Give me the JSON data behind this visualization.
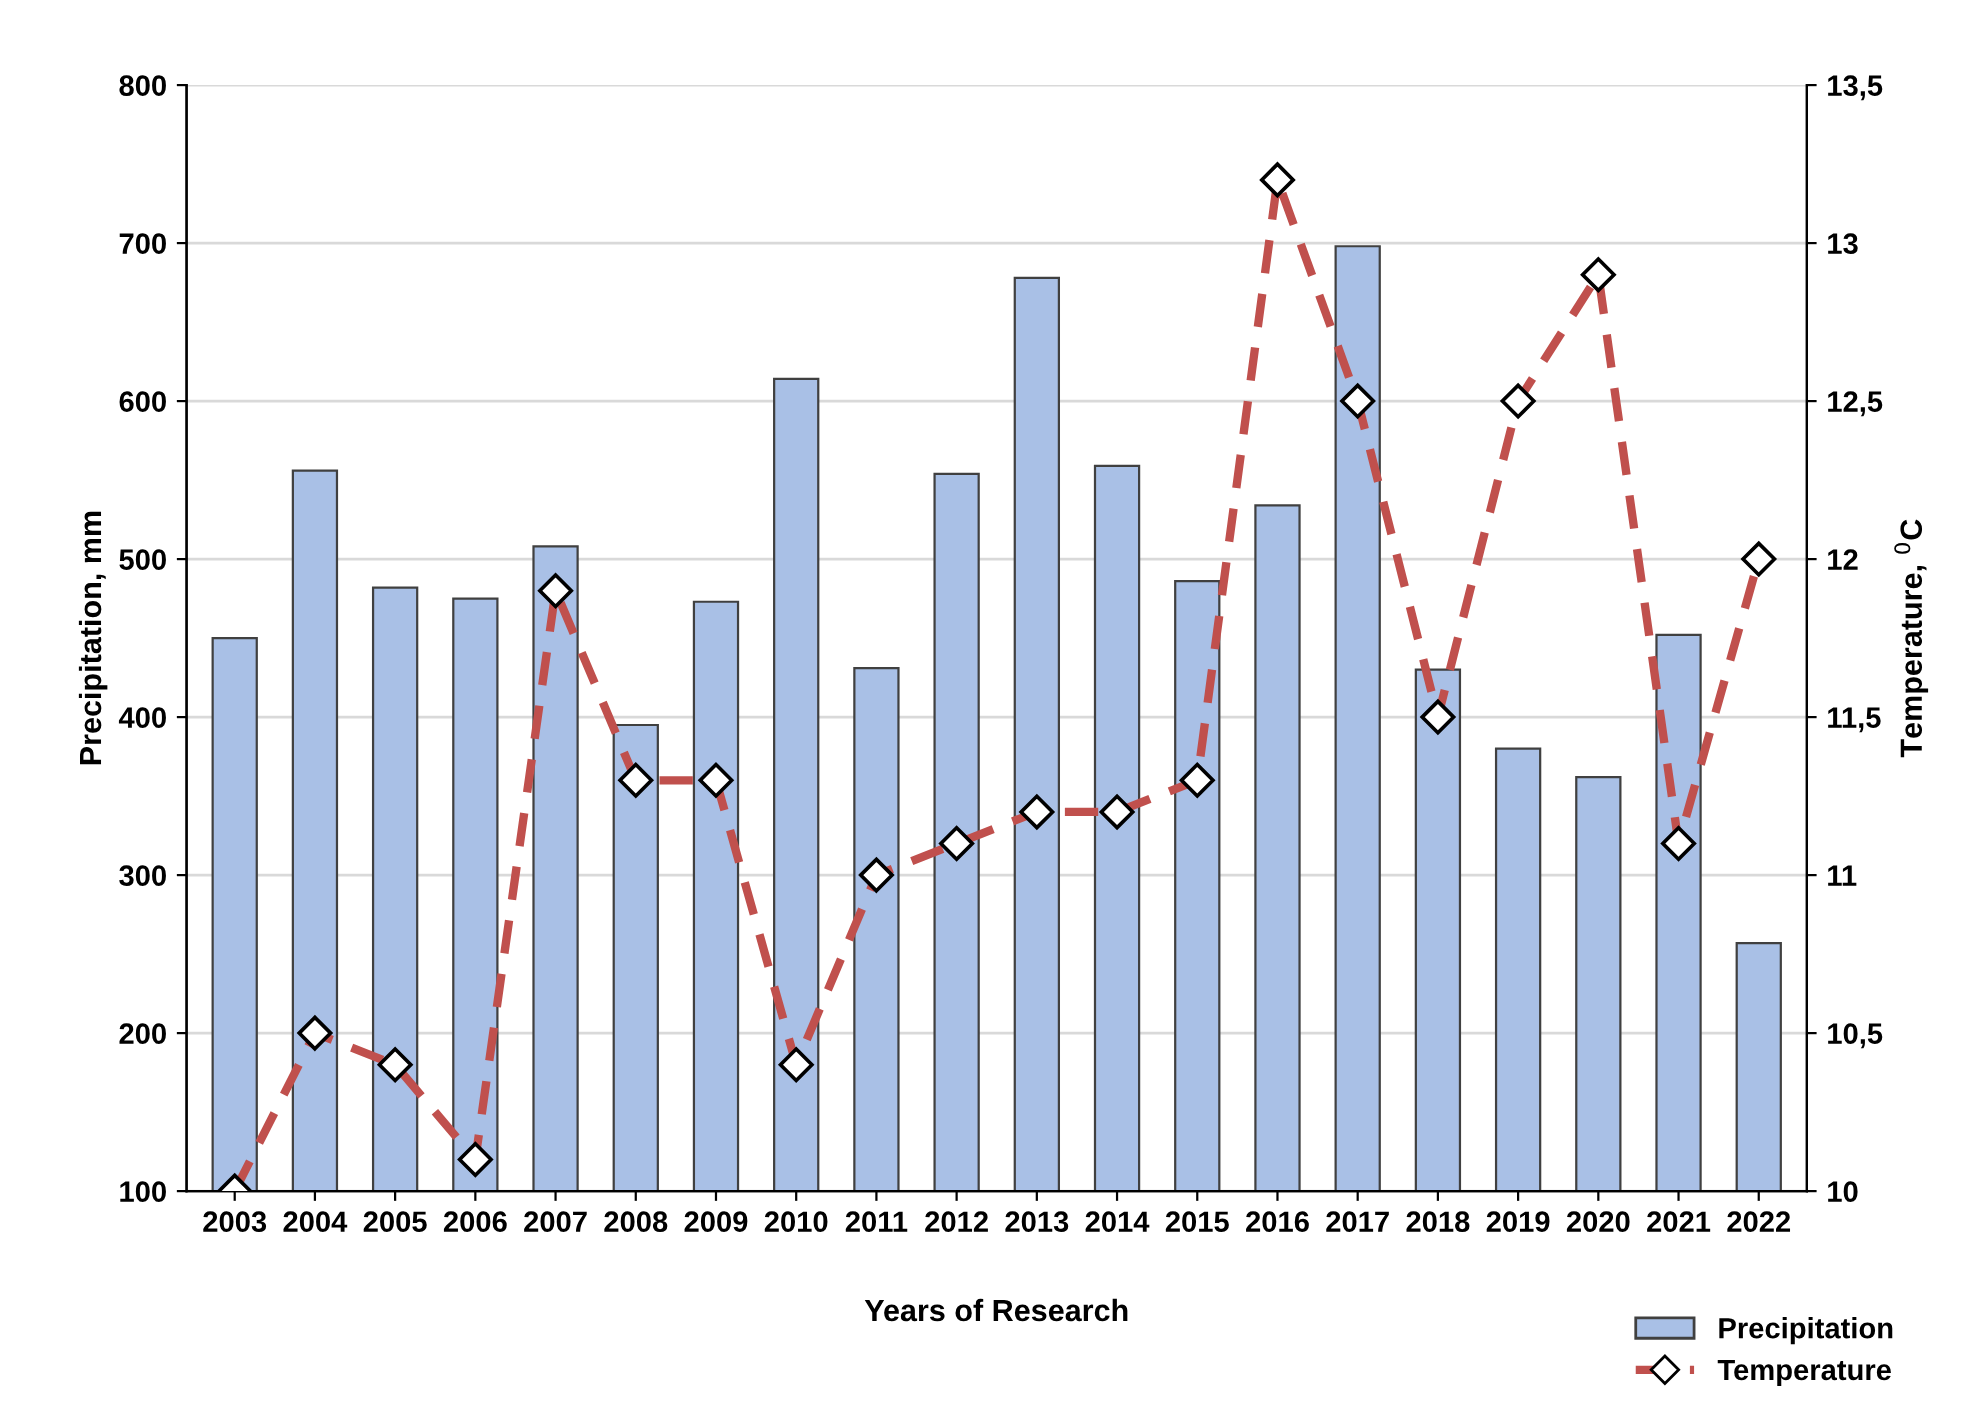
{
  "chart_data": {
    "type": "bar",
    "xlabel": "Years of Research",
    "ylabel": "Precipitation, mm",
    "y2label": "Temperature, $^{0}$C",
    "categories": [
      "2003",
      "2004",
      "2005",
      "2006",
      "2007",
      "2008",
      "2009",
      "2010",
      "2011",
      "2012",
      "2013",
      "2014",
      "2015",
      "2016",
      "2017",
      "2018",
      "2019",
      "2020",
      "2021",
      "2022"
    ],
    "series": [
      {
        "name": "Precipitation",
        "color": "#a9c0e6",
        "values": [
          450,
          556,
          482,
          475,
          508,
          395,
          473,
          614,
          431,
          554,
          678,
          559,
          486,
          534,
          698,
          430,
          380,
          362,
          452,
          257
        ]
      },
      {
        "name": "Temperature",
        "type": "line",
        "axis": "y2",
        "color": "#c0504d",
        "marker": "diamond",
        "line_style": "dashed",
        "values": [
          10.0,
          10.5,
          10.4,
          10.1,
          11.9,
          11.3,
          11.3,
          10.4,
          11.0,
          11.1,
          11.2,
          11.2,
          11.3,
          13.2,
          12.5,
          11.5,
          12.5,
          12.9,
          11.1,
          12.0
        ]
      }
    ],
    "ylim": [
      100,
      800
    ],
    "yticks": [
      100,
      200,
      300,
      400,
      500,
      600,
      700,
      800
    ],
    "y2lim": [
      10,
      13.5
    ],
    "y2ticks": [
      10,
      {
        "value": 10.5,
        "label": "10,5"
      },
      11,
      {
        "value": 11.5,
        "label": "11,5"
      },
      12,
      {
        "value": 12.5,
        "label": "12,5"
      },
      13,
      {
        "value": 13.5,
        "label": "13,5"
      }
    ],
    "grid": "y",
    "legend": "bottom right"
  }
}
